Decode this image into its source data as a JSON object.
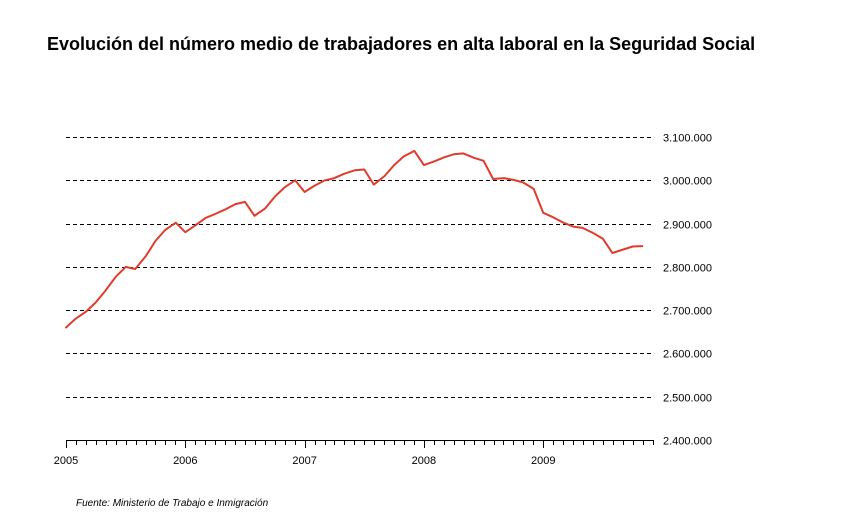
{
  "chart_data": {
    "type": "line",
    "title": "Evolución del número medio de trabajadores en alta laboral en la Seguridad Social",
    "xlabel": "",
    "ylabel": "",
    "ylim": [
      2400000,
      3100000
    ],
    "y_ticks": [
      {
        "value": 3100000,
        "label": "3.100.000"
      },
      {
        "value": 3000000,
        "label": "3.000.000"
      },
      {
        "value": 2900000,
        "label": "2.900.000"
      },
      {
        "value": 2800000,
        "label": "2.800.000"
      },
      {
        "value": 2700000,
        "label": "2.700.000"
      },
      {
        "value": 2600000,
        "label": "2.600.000"
      },
      {
        "value": 2500000,
        "label": "2.500.000"
      },
      {
        "value": 2400000,
        "label": "2.400.000"
      }
    ],
    "xlim": [
      2005.0,
      2009.92
    ],
    "x_ticks": [
      {
        "value": 2005,
        "label": "2005"
      },
      {
        "value": 2006,
        "label": "2006"
      },
      {
        "value": 2007,
        "label": "2007"
      },
      {
        "value": 2008,
        "label": "2008"
      },
      {
        "value": 2009,
        "label": "2009"
      }
    ],
    "grid": true,
    "legend": "none",
    "line_color": "#e03c2c",
    "series": [
      {
        "name": "",
        "points": [
          [
            2005.0,
            2660000
          ],
          [
            2005.08,
            2680000
          ],
          [
            2005.17,
            2697000
          ],
          [
            2005.25,
            2718000
          ],
          [
            2005.33,
            2745000
          ],
          [
            2005.42,
            2778000
          ],
          [
            2005.5,
            2800000
          ],
          [
            2005.58,
            2795000
          ],
          [
            2005.67,
            2825000
          ],
          [
            2005.75,
            2860000
          ],
          [
            2005.83,
            2885000
          ],
          [
            2005.92,
            2902000
          ],
          [
            2006.0,
            2880000
          ],
          [
            2006.08,
            2895000
          ],
          [
            2006.17,
            2913000
          ],
          [
            2006.25,
            2922000
          ],
          [
            2006.33,
            2932000
          ],
          [
            2006.42,
            2945000
          ],
          [
            2006.5,
            2950000
          ],
          [
            2006.58,
            2918000
          ],
          [
            2006.67,
            2935000
          ],
          [
            2006.75,
            2962000
          ],
          [
            2006.83,
            2983000
          ],
          [
            2006.92,
            3000000
          ],
          [
            2007.0,
            2973000
          ],
          [
            2007.08,
            2987000
          ],
          [
            2007.17,
            3000000
          ],
          [
            2007.25,
            3005000
          ],
          [
            2007.33,
            3015000
          ],
          [
            2007.42,
            3023000
          ],
          [
            2007.5,
            3025000
          ],
          [
            2007.58,
            2990000
          ],
          [
            2007.67,
            3010000
          ],
          [
            2007.75,
            3035000
          ],
          [
            2007.83,
            3055000
          ],
          [
            2007.92,
            3068000
          ],
          [
            2008.0,
            3035000
          ],
          [
            2008.08,
            3043000
          ],
          [
            2008.17,
            3053000
          ],
          [
            2008.25,
            3060000
          ],
          [
            2008.33,
            3062000
          ],
          [
            2008.42,
            3052000
          ],
          [
            2008.5,
            3045000
          ],
          [
            2008.58,
            3003000
          ],
          [
            2008.67,
            3005000
          ],
          [
            2008.75,
            3001000
          ],
          [
            2008.83,
            2995000
          ],
          [
            2008.92,
            2980000
          ],
          [
            2009.0,
            2925000
          ],
          [
            2009.08,
            2915000
          ],
          [
            2009.17,
            2902000
          ],
          [
            2009.25,
            2893000
          ],
          [
            2009.33,
            2890000
          ],
          [
            2009.42,
            2878000
          ],
          [
            2009.5,
            2865000
          ],
          [
            2009.58,
            2832000
          ],
          [
            2009.67,
            2840000
          ],
          [
            2009.75,
            2847000
          ],
          [
            2009.83,
            2848000
          ]
        ]
      }
    ]
  },
  "source": "Fuente: Ministerio de Trabajo e Inmigración"
}
